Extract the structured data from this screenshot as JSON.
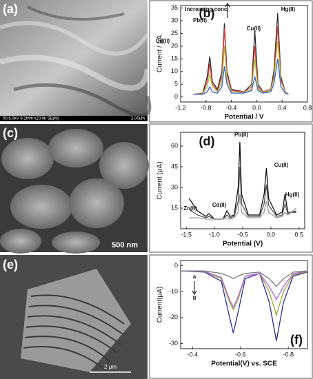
{
  "images": [
    {
      "panel_label": "(a)",
      "info": "00.5.0kV 9.1mm x20.0k SE(M)",
      "scale_text": "2.00um"
    },
    {
      "panel_label": "(c)",
      "scale_text": "500 nm"
    },
    {
      "panel_label": "(e)",
      "scale_text": "2 μm"
    }
  ],
  "chart_data": [
    {
      "type": "line",
      "panel_label": "(b)",
      "xlabel": "Potential / V",
      "ylabel": "Current / μA",
      "annotations": [
        "Increasing conc.",
        "Cd(II)",
        "Pb(II)",
        "Cu(II)",
        "Hg(II)"
      ],
      "xlim": [
        -1.2,
        0.8
      ],
      "xticks": [
        -1.2,
        -0.8,
        -0.4,
        {
          "value": 0,
          "label": "0.0"
        },
        0.4,
        0.8
      ],
      "ylim": [
        -2,
        36
      ],
      "yticks": [
        0,
        5,
        10,
        15,
        20,
        25,
        30,
        35
      ],
      "x": [
        -1.0,
        -0.85,
        -0.78,
        -0.74,
        -0.7,
        -0.62,
        -0.55,
        -0.51,
        -0.47,
        -0.4,
        -0.2,
        -0.08,
        -0.03,
        0.02,
        0.1,
        0.22,
        0.27,
        0.33,
        0.38,
        0.45,
        0.5
      ],
      "series": [
        {
          "color": "#2a2a2a",
          "values": [
            1,
            1.5,
            8,
            16,
            6,
            3,
            10,
            29,
            10,
            3,
            2,
            5,
            26,
            5,
            2,
            3,
            10,
            33,
            8,
            2,
            1
          ]
        },
        {
          "color": "#e03a3a",
          "values": [
            1,
            1.3,
            6,
            13,
            5,
            2.5,
            8,
            27,
            9,
            2.5,
            2,
            4,
            20,
            4,
            2,
            3,
            8,
            28,
            7,
            2,
            1
          ]
        },
        {
          "color": "#a8c83a",
          "values": [
            1,
            1.2,
            4,
            9,
            4,
            2,
            6,
            20,
            7,
            2,
            1.8,
            3,
            15,
            3,
            1.8,
            2.5,
            7,
            22,
            6,
            1.8,
            1
          ]
        },
        {
          "color": "#3a5ad8",
          "values": [
            1,
            1,
            2,
            4,
            2,
            1.5,
            4,
            12,
            5,
            1.5,
            1.5,
            2.5,
            8,
            2.5,
            1.5,
            2,
            5,
            15,
            4,
            1.5,
            1
          ]
        }
      ]
    },
    {
      "type": "line",
      "panel_label": "(d)",
      "xlabel": "Potential (V)",
      "ylabel": "Current (μA)",
      "annotations": [
        "Zn(II)",
        "Cd(II)",
        "Pb(II)",
        "Cu(II)",
        "Hg(II)"
      ],
      "xlim": [
        -1.6,
        0.6
      ],
      "xticks": [
        -1.5,
        {
          "value": -1,
          "label": "-1.0"
        },
        -0.5,
        {
          "value": 0,
          "label": "0.0"
        },
        0.5
      ],
      "ylim": [
        0,
        70
      ],
      "yticks": [
        15,
        30,
        45,
        60
      ],
      "x": [
        -1.45,
        -1.3,
        -1.15,
        -1.1,
        -1.0,
        -0.85,
        -0.78,
        -0.72,
        -0.65,
        -0.58,
        -0.55,
        -0.52,
        -0.4,
        -0.2,
        -0.12,
        -0.08,
        -0.04,
        0.1,
        0.2,
        0.25,
        0.3,
        0.45
      ],
      "series": [
        {
          "color": "#111111",
          "values": [
            22,
            13,
            9,
            11,
            7,
            7,
            13,
            9,
            10,
            30,
            63,
            25,
            10,
            10,
            25,
            44,
            22,
            10,
            12,
            25,
            12,
            12
          ]
        },
        {
          "color": "#555555",
          "values": [
            14,
            10,
            8,
            9,
            7,
            7,
            10,
            8,
            9,
            20,
            45,
            18,
            9,
            9,
            18,
            32,
            17,
            9,
            10,
            18,
            11,
            13
          ]
        },
        {
          "color": "#999999",
          "values": [
            8,
            8,
            7,
            7,
            7,
            7,
            8,
            7,
            8,
            12,
            25,
            12,
            8,
            8,
            12,
            20,
            12,
            8,
            9,
            12,
            10,
            15
          ]
        }
      ]
    },
    {
      "type": "line",
      "panel_label": "(f)",
      "xlabel": "Potential(V) vs. SCE",
      "ylabel": "Current(μA)",
      "annotations": [
        "a",
        "g"
      ],
      "xlim": [
        -0.35,
        -0.88
      ],
      "xticks": [
        -0.4,
        -0.6,
        -0.8
      ],
      "ylim": [
        -32,
        2
      ],
      "yticks": [
        -30,
        -20,
        -10,
        0
      ],
      "x": [
        -0.35,
        -0.45,
        -0.52,
        -0.55,
        -0.57,
        -0.59,
        -0.62,
        -0.68,
        -0.72,
        -0.75,
        -0.78,
        -0.82,
        -0.88
      ],
      "series": [
        {
          "color": "#2b2b9a",
          "values": [
            -2,
            -2.5,
            -6,
            -18,
            -26,
            -18,
            -5,
            -3,
            -14,
            -29,
            -14,
            -4,
            -2.5
          ]
        },
        {
          "color": "#9aaa2a",
          "values": [
            -2,
            -2.3,
            -5,
            -13,
            -17,
            -13,
            -4,
            -3,
            -10,
            -19,
            -10,
            -3.5,
            -2.3
          ]
        },
        {
          "color": "#b060d8",
          "values": [
            -2,
            -2.2,
            -4.5,
            -12,
            -16,
            -12,
            -4,
            -3,
            -8,
            -13,
            -8,
            -3,
            -2.2
          ]
        },
        {
          "color": "#777777",
          "values": [
            -2,
            -2,
            -3,
            -4,
            -5,
            -4,
            -3,
            -2.5,
            -5,
            -8,
            -5,
            -2.5,
            -2
          ]
        }
      ]
    }
  ]
}
